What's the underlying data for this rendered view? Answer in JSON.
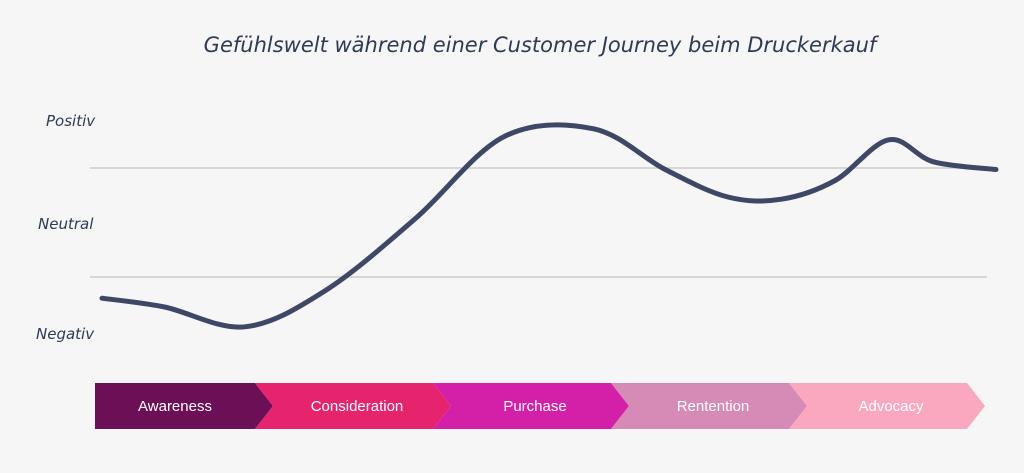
{
  "chart_data": {
    "type": "line",
    "title": "Gefühlswelt während einer Customer Journey beim Druckerkauf",
    "y_levels": [
      "Positiv",
      "Neutral",
      "Negativ"
    ],
    "stages": [
      {
        "label": "Awareness",
        "color": "#6b0f56"
      },
      {
        "label": "Consideration",
        "color": "#e6246e"
      },
      {
        "label": "Purchase",
        "color": "#d420a8"
      },
      {
        "label": "Rentention",
        "color": "#d68ab6"
      },
      {
        "label": "Advocacy",
        "color": "#f9a8c0"
      }
    ],
    "ylim": [
      -1,
      1
    ],
    "series": [
      {
        "color": "#3e4766",
        "x": [
          0,
          0.07,
          0.16,
          0.25,
          0.35,
          0.45,
          0.55,
          0.63,
          0.7,
          0.76,
          0.82,
          0.88,
          0.93,
          1.0
        ],
        "y": [
          -0.62,
          -0.7,
          -0.88,
          -0.55,
          0.1,
          0.85,
          0.92,
          0.55,
          0.3,
          0.28,
          0.45,
          0.82,
          0.62,
          0.55
        ]
      }
    ],
    "grid": true
  }
}
